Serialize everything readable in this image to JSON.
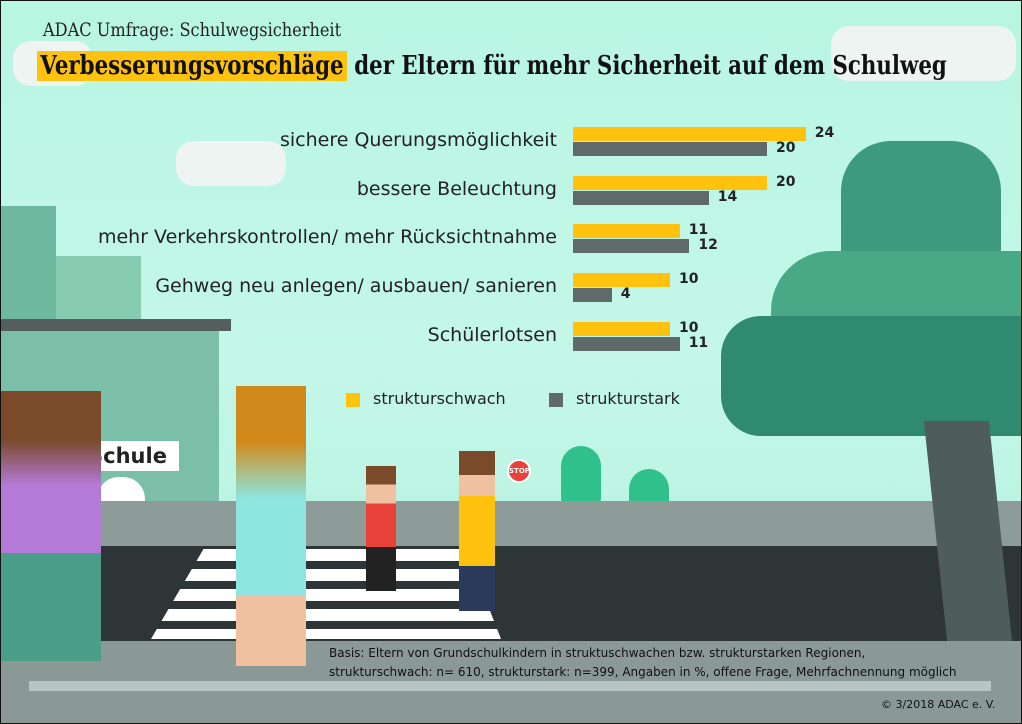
{
  "header": {
    "subtitle": "ADAC Umfrage: Schulwegsicherheit",
    "title_highlight": "Verbesserungsvorschläge",
    "title_rest": " der Eltern für mehr Sicherheit auf dem Schulweg"
  },
  "chart_data": {
    "type": "bar",
    "orientation": "horizontal",
    "categories": [
      "sichere Querungsmöglichkeit",
      "bessere Beleuchtung",
      "mehr Verkehrskontrollen/ mehr Rücksichtnahme",
      "Gehweg neu anlegen/ ausbauen/ sanieren",
      "Schülerlotsen"
    ],
    "series": [
      {
        "name": "strukturschwach",
        "color": "#ffc20e",
        "values": [
          24,
          20,
          11,
          10,
          10
        ]
      },
      {
        "name": "strukturstark",
        "color": "#5f6b6b",
        "values": [
          20,
          14,
          12,
          4,
          11
        ]
      }
    ],
    "unit": "%",
    "legend": "bottom"
  },
  "scene": {
    "school_sign": "Schule",
    "stop_sign": "STOP"
  },
  "footer": {
    "note_line1": "Basis: Eltern von Grundschulkindern in struktuschwachen bzw. strukturstarken Regionen,",
    "note_line2": "strukturschwach: n= 610, strukturstark: n=399, Angaben in %, offene Frage, Mehrfachnennung möglich",
    "copyright": "© 3/2018  ADAC e. V."
  }
}
